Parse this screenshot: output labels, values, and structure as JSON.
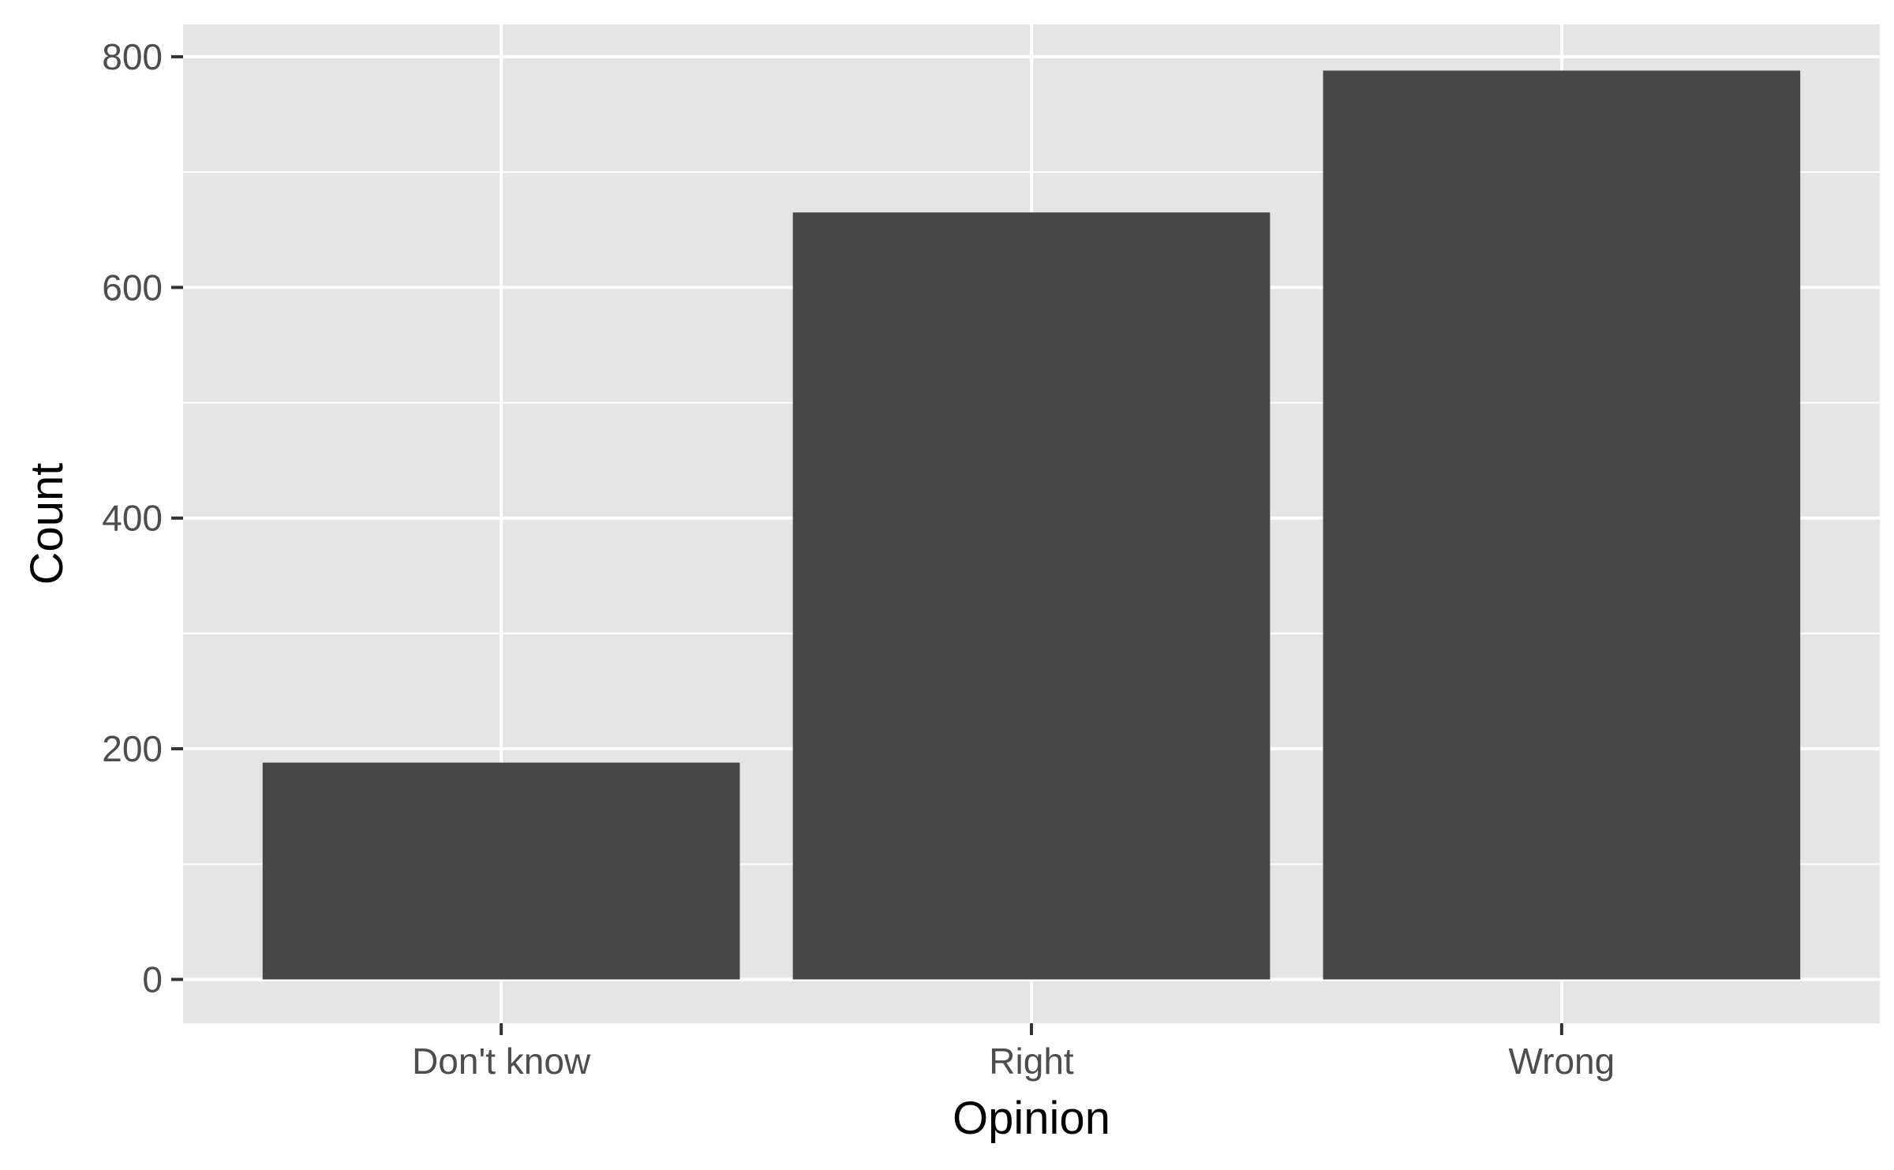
{
  "chart_data": {
    "type": "bar",
    "title": "",
    "xlabel": "Opinion",
    "ylabel": "Count",
    "categories": [
      "Don't know",
      "Right",
      "Wrong"
    ],
    "values": [
      188,
      665,
      788
    ],
    "ylim": [
      -38,
      828
    ],
    "y_ticks": [
      0,
      200,
      400,
      600,
      800
    ],
    "y_tick_labels": [
      "0",
      "200",
      "400",
      "600",
      "800"
    ],
    "grid": true,
    "legend": "none",
    "colors": {
      "bar": "#474747",
      "panel_background": "#e5e5e5",
      "grid": "#ffffff",
      "tick_text": "#4d4d4d",
      "axis_title": "#000000"
    }
  }
}
